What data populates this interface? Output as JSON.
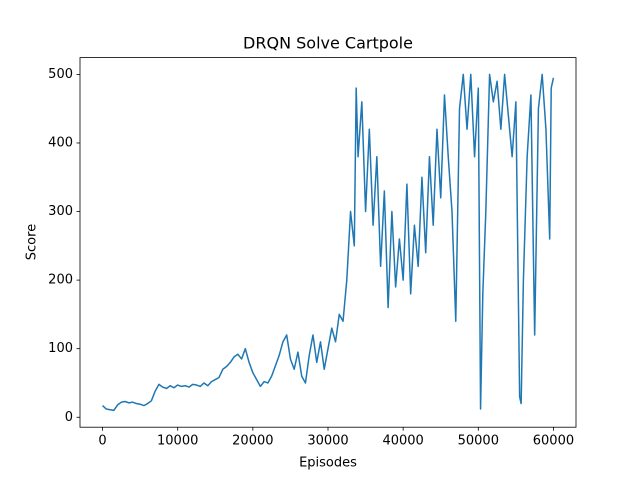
{
  "chart_data": {
    "type": "line",
    "title": "DRQN Solve Cartpole",
    "x_label": "Episodes",
    "y_label": "Score",
    "color": "#1f77b4",
    "x": [
      0,
      500,
      1000,
      1500,
      2000,
      2500,
      3000,
      3500,
      4000,
      4500,
      5000,
      5500,
      6000,
      6500,
      7000,
      7500,
      8000,
      8500,
      9000,
      9500,
      10000,
      10500,
      11000,
      11500,
      12000,
      12500,
      13000,
      13500,
      14000,
      14500,
      15000,
      15500,
      16000,
      16500,
      17000,
      17500,
      18000,
      18500,
      19000,
      19500,
      20000,
      20500,
      21000,
      21500,
      22000,
      22500,
      23000,
      23500,
      24000,
      24500,
      25000,
      25500,
      26000,
      26500,
      27000,
      27500,
      28000,
      28500,
      29000,
      29500,
      30000,
      30500,
      31000,
      31500,
      32000,
      32500,
      33000,
      33500,
      33750,
      34000,
      34500,
      35000,
      35500,
      36000,
      36500,
      37000,
      37500,
      38000,
      38500,
      39000,
      39500,
      40000,
      40500,
      41000,
      41500,
      42000,
      42500,
      43000,
      43500,
      44000,
      44500,
      45000,
      45500,
      46000,
      46500,
      47000,
      47500,
      48000,
      48500,
      49000,
      49500,
      50000,
      50300,
      50600,
      51000,
      51500,
      52000,
      52500,
      53000,
      53500,
      54000,
      54500,
      55000,
      55500,
      55700,
      56000,
      56500,
      57000,
      57500,
      58000,
      58500,
      59000,
      59500,
      59700,
      60000
    ],
    "values": [
      17,
      12,
      11,
      10,
      18,
      22,
      23,
      21,
      22,
      20,
      19,
      17,
      20,
      24,
      38,
      48,
      44,
      42,
      46,
      43,
      47,
      45,
      46,
      44,
      48,
      47,
      45,
      50,
      46,
      52,
      55,
      58,
      70,
      74,
      80,
      88,
      92,
      85,
      100,
      80,
      65,
      55,
      45,
      52,
      50,
      60,
      75,
      90,
      110,
      120,
      85,
      70,
      95,
      60,
      50,
      90,
      120,
      80,
      110,
      70,
      100,
      130,
      110,
      150,
      140,
      200,
      300,
      250,
      480,
      380,
      460,
      300,
      420,
      280,
      380,
      220,
      330,
      160,
      300,
      190,
      260,
      200,
      340,
      180,
      280,
      220,
      350,
      240,
      380,
      280,
      420,
      320,
      470,
      380,
      300,
      140,
      450,
      500,
      420,
      500,
      380,
      480,
      12,
      180,
      300,
      500,
      460,
      490,
      420,
      500,
      440,
      380,
      460,
      30,
      20,
      200,
      380,
      470,
      120,
      450,
      500,
      420,
      260,
      480,
      495
    ],
    "xlim": [
      -3000,
      63000
    ],
    "ylim": [
      -14.5,
      524.5
    ],
    "xticks": [
      0,
      10000,
      20000,
      30000,
      40000,
      50000,
      60000
    ],
    "yticks": [
      0,
      100,
      200,
      300,
      400,
      500
    ]
  }
}
